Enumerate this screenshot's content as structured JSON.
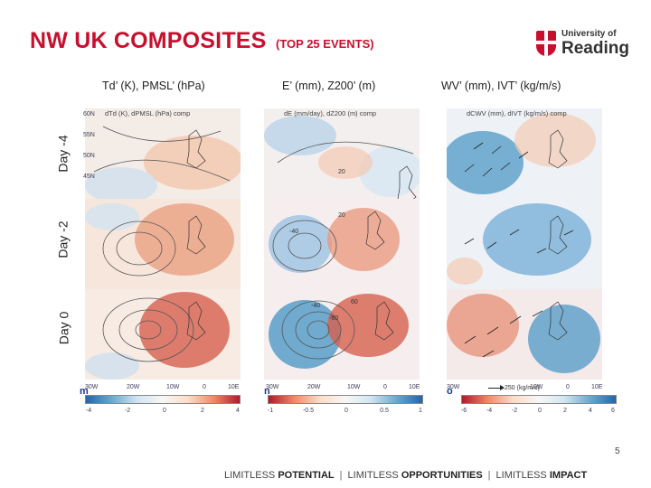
{
  "slide": {
    "title": "NW UK COMPOSITES",
    "subtitle": "(TOP 25 EVENTS)",
    "page_number": "5"
  },
  "logo": {
    "line1": "University of",
    "line2": "Reading",
    "crest_icon": "university-crest-icon"
  },
  "column_headers": [
    "Td’ (K), PMSL’ (hPa)",
    "E’ (mm), Z200’ (m)",
    "WV’ (mm), IVT’ (kg/m/s)"
  ],
  "panel_titles": [
    "dTd (K), dPMSL (hPa) comp",
    "dE (mm/day), dZ200 (m) comp",
    "dCWV (mm), dIVT (kg/m/s) comp"
  ],
  "row_labels": [
    "Day -4",
    "Day -2",
    "Day 0"
  ],
  "lat_labels": [
    "60N",
    "55N",
    "50N",
    "45N"
  ],
  "lon_labels": [
    "30W",
    "20W",
    "10W",
    "0",
    "10E"
  ],
  "contour_labels": {
    "e_day0": [
      "-40",
      "-60",
      "60"
    ],
    "e_day2": [
      "-40",
      "20"
    ],
    "e_day4": [
      "20"
    ]
  },
  "colorbars": [
    {
      "letter": "m",
      "ticks": [
        "-4",
        "-2",
        "0",
        "2",
        "4"
      ]
    },
    {
      "letter": "n",
      "ticks": [
        "-1",
        "-0.5",
        "0",
        "0.5",
        "1"
      ]
    },
    {
      "letter": "o",
      "ticks": [
        "-6",
        "-4",
        "-2",
        "0",
        "2",
        "4",
        "6"
      ]
    }
  ],
  "ivt_reference": "250 (kg/m/s)",
  "footer": {
    "part1_plain": "LIMITLESS",
    "part1_bold": "POTENTIAL",
    "part2_plain": "LIMITLESS",
    "part2_bold": "OPPORTUNITIES",
    "part3_plain": "LIMITLESS",
    "part3_bold": "IMPACT",
    "separator": "|"
  },
  "colors": {
    "title_red": "#c8102e",
    "warm": "#d6604d",
    "cool": "#4393c3",
    "neutral": "#f7f7f7"
  }
}
